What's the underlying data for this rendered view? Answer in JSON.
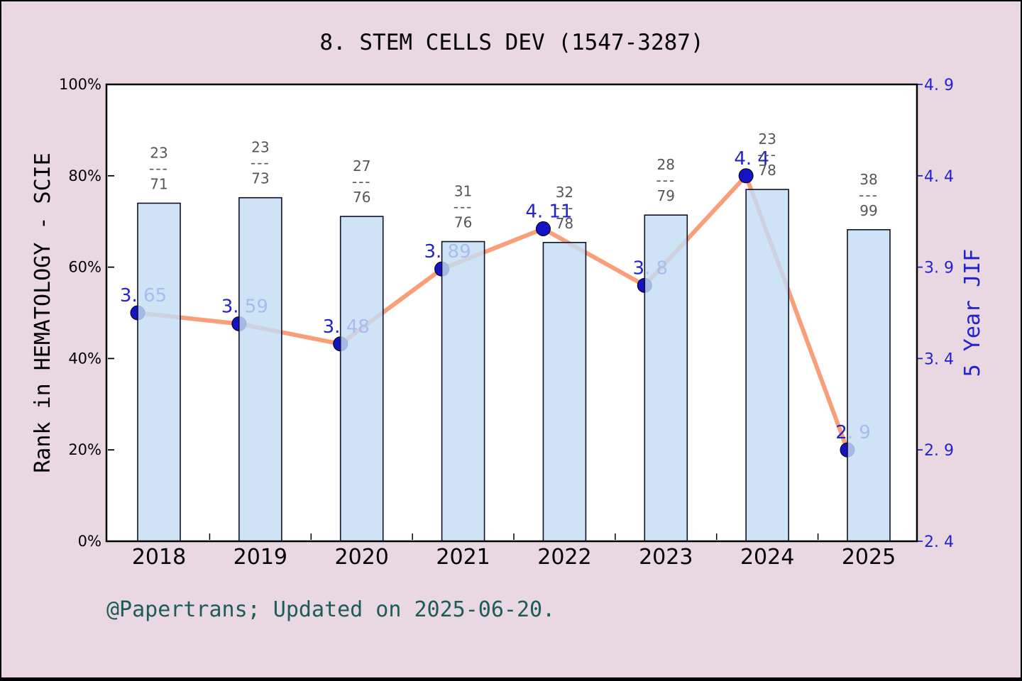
{
  "title": "8. STEM CELLS DEV (1547-3287)",
  "footer": "@Papertrans; Updated on 2025-06-20.",
  "colors": {
    "background": "#e9d8e1",
    "plot_background": "#ffffff",
    "plot_border": "#000000",
    "bar_fill": "#c5ddf4",
    "bar_border": "#10102a",
    "line": "#f89e78",
    "marker": "#1414c4",
    "marker_edge": "#000000",
    "value_label": "#2323cb",
    "fraction_label": "#565656",
    "left_axis_text": "#000000",
    "right_axis_text": "#2323cb",
    "footer_text": "#1d5c56",
    "title_text": "#000000"
  },
  "chart_data": {
    "type": "bar+line combo",
    "categories": [
      "2018",
      "2019",
      "2020",
      "2021",
      "2022",
      "2023",
      "2024",
      "2025"
    ],
    "series": [
      {
        "name": "Rank in HEMATOLOGY - SCIE",
        "type": "bar",
        "axis": "left",
        "unit": "percent",
        "values": [
          74.0,
          75.2,
          71.1,
          65.6,
          65.4,
          71.4,
          77.0,
          68.2
        ],
        "bar_labels": [
          "23/71",
          "23/73",
          "27/76",
          "31/76",
          "32/78",
          "28/79",
          "23/78",
          "38/99"
        ]
      },
      {
        "name": "5 Year JIF",
        "type": "line",
        "axis": "right",
        "values": [
          3.65,
          3.59,
          3.48,
          3.89,
          4.11,
          3.8,
          4.4,
          2.9
        ],
        "point_labels": [
          "3. 65",
          "3. 59",
          "3. 48",
          "3. 89",
          "4. 11",
          "3. 8",
          "4. 4",
          "2. 9"
        ]
      }
    ],
    "left_axis": {
      "label": "Rank in HEMATOLOGY - SCIE",
      "ticks": [
        "0%",
        "20%",
        "40%",
        "60%",
        "80%",
        "100%"
      ],
      "range": [
        0,
        100
      ]
    },
    "right_axis": {
      "label": "5 Year JIF",
      "ticks": [
        "2.4",
        "2.9",
        "3.4",
        "3.9",
        "4.4",
        "4.9"
      ],
      "range": [
        2.4,
        4.9
      ]
    },
    "x_axis": {
      "ticks": [
        "2018",
        "2019",
        "2020",
        "2021",
        "2022",
        "2023",
        "2024",
        "2025"
      ]
    },
    "fraction_separator": "---",
    "grid": false,
    "legend": false
  }
}
